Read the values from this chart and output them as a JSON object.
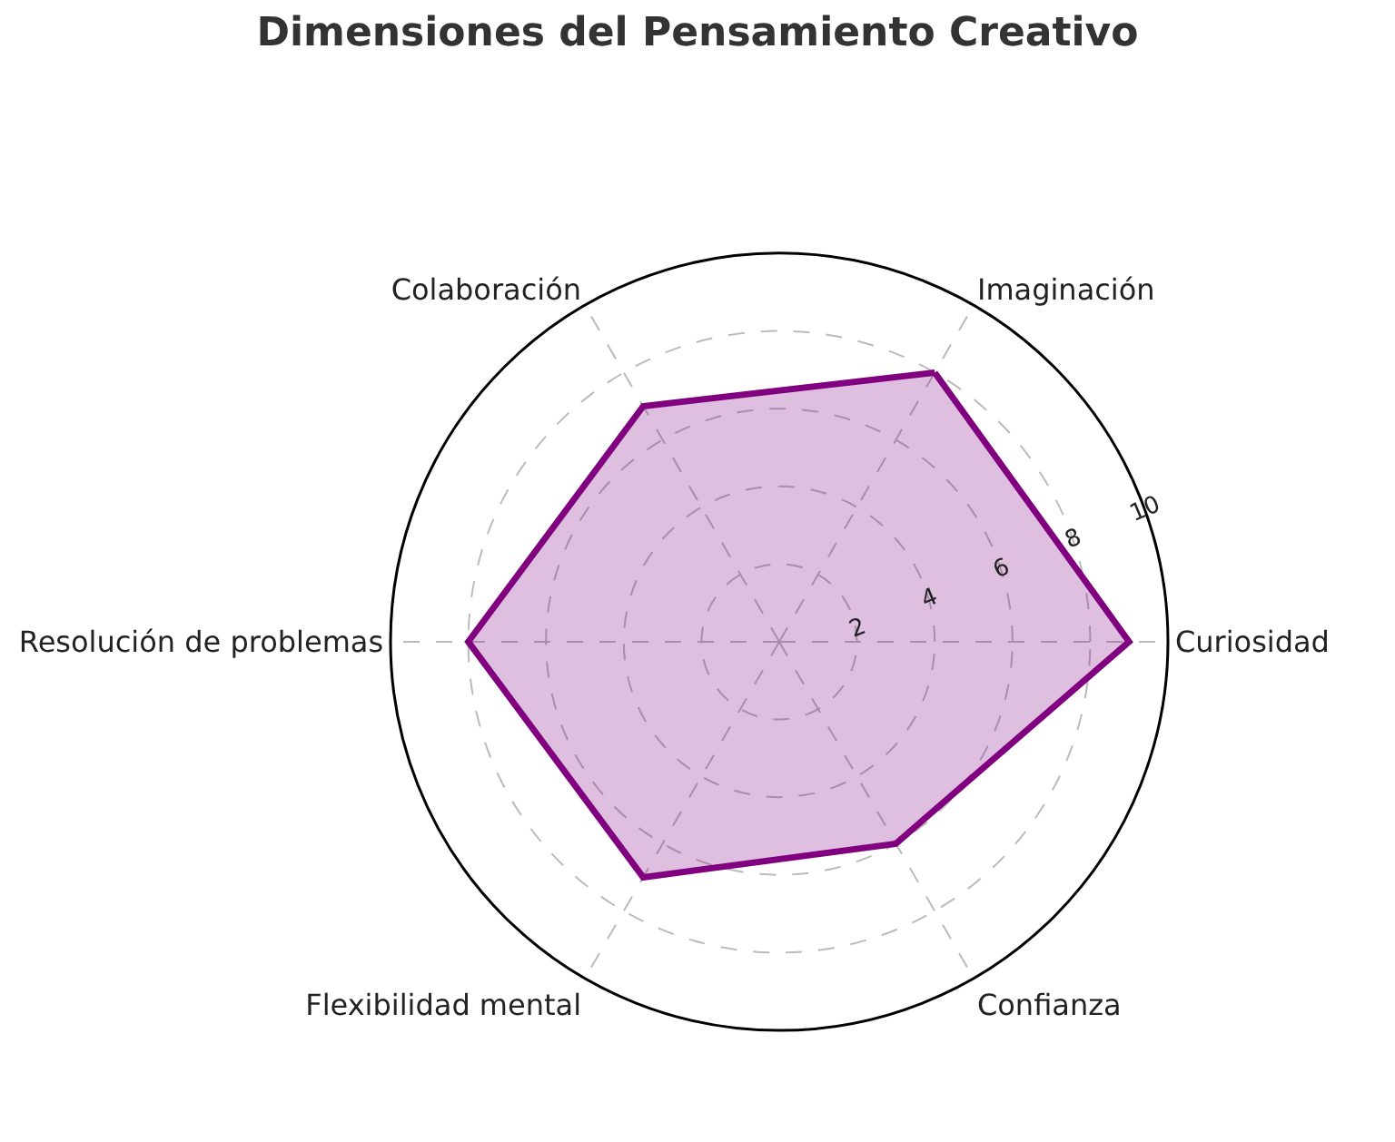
{
  "chart_data": {
    "type": "radar",
    "title": "Dimensiones del Pensamiento Creativo",
    "categories": [
      "Imaginación",
      "Curiosidad",
      "Confianza",
      "Flexibilidad mental",
      "Resolución de problemas",
      "Colaboración"
    ],
    "series": [
      {
        "color": "#800080",
        "values": [
          8,
          9,
          6,
          7,
          8,
          7
        ]
      }
    ],
    "ylim": [
      0,
      10
    ],
    "yticks": [
      2,
      4,
      6,
      8,
      10
    ],
    "grid": true,
    "marker": "none",
    "line_style": "solid"
  }
}
